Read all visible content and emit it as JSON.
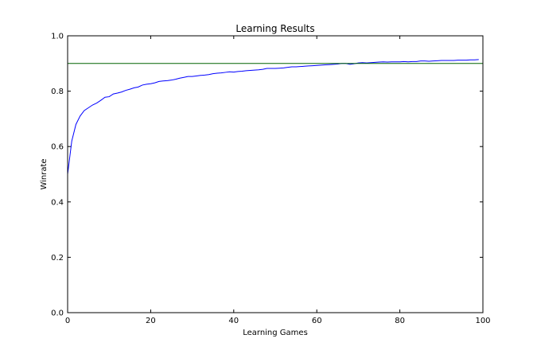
{
  "chart_data": {
    "type": "line",
    "title": "Learning Results",
    "xlabel": "Learning Games",
    "ylabel": "Winrate",
    "xlim": [
      0,
      100
    ],
    "ylim": [
      0.0,
      1.0
    ],
    "xticks": [
      0,
      20,
      40,
      60,
      80,
      100
    ],
    "xtick_labels": [
      "0",
      "20",
      "40",
      "60",
      "80",
      "100"
    ],
    "yticks": [
      0.0,
      0.2,
      0.4,
      0.6,
      0.8,
      1.0
    ],
    "ytick_labels": [
      "0.0",
      "0.2",
      "0.4",
      "0.6",
      "0.8",
      "1.0"
    ],
    "grid": false,
    "series": [
      {
        "color": "#0000ff",
        "x": [
          0,
          1,
          2,
          3,
          4,
          5,
          6,
          7,
          8,
          9,
          10,
          11,
          12,
          13,
          14,
          15,
          16,
          17,
          18,
          19,
          20,
          21,
          22,
          23,
          24,
          25,
          26,
          27,
          28,
          29,
          30,
          31,
          32,
          33,
          34,
          35,
          36,
          37,
          38,
          39,
          40,
          41,
          42,
          43,
          44,
          45,
          46,
          47,
          48,
          49,
          50,
          51,
          52,
          53,
          54,
          55,
          56,
          57,
          58,
          59,
          60,
          61,
          62,
          63,
          64,
          65,
          66,
          67,
          68,
          69,
          70,
          71,
          72,
          73,
          74,
          75,
          76,
          77,
          78,
          79,
          80,
          81,
          82,
          83,
          84,
          85,
          86,
          87,
          88,
          89,
          90,
          91,
          92,
          93,
          94,
          95,
          96,
          97,
          98,
          99
        ],
        "y": [
          0.5,
          0.62,
          0.68,
          0.71,
          0.73,
          0.74,
          0.75,
          0.757,
          0.767,
          0.778,
          0.78,
          0.79,
          0.793,
          0.797,
          0.803,
          0.807,
          0.812,
          0.815,
          0.822,
          0.825,
          0.827,
          0.83,
          0.835,
          0.837,
          0.838,
          0.84,
          0.843,
          0.847,
          0.85,
          0.853,
          0.853,
          0.855,
          0.857,
          0.858,
          0.86,
          0.863,
          0.865,
          0.866,
          0.868,
          0.87,
          0.869,
          0.871,
          0.872,
          0.874,
          0.875,
          0.876,
          0.877,
          0.879,
          0.882,
          0.882,
          0.882,
          0.883,
          0.884,
          0.886,
          0.888,
          0.888,
          0.889,
          0.89,
          0.891,
          0.892,
          0.893,
          0.894,
          0.895,
          0.896,
          0.897,
          0.898,
          0.9,
          0.9,
          0.897,
          0.899,
          0.902,
          0.903,
          0.902,
          0.903,
          0.904,
          0.905,
          0.906,
          0.905,
          0.906,
          0.906,
          0.906,
          0.907,
          0.906,
          0.907,
          0.907,
          0.909,
          0.909,
          0.908,
          0.909,
          0.91,
          0.911,
          0.911,
          0.911,
          0.911,
          0.912,
          0.912,
          0.912,
          0.913,
          0.913,
          0.914
        ]
      },
      {
        "color": "#006400",
        "x": [
          0,
          100
        ],
        "y": [
          0.9,
          0.9
        ]
      }
    ]
  }
}
